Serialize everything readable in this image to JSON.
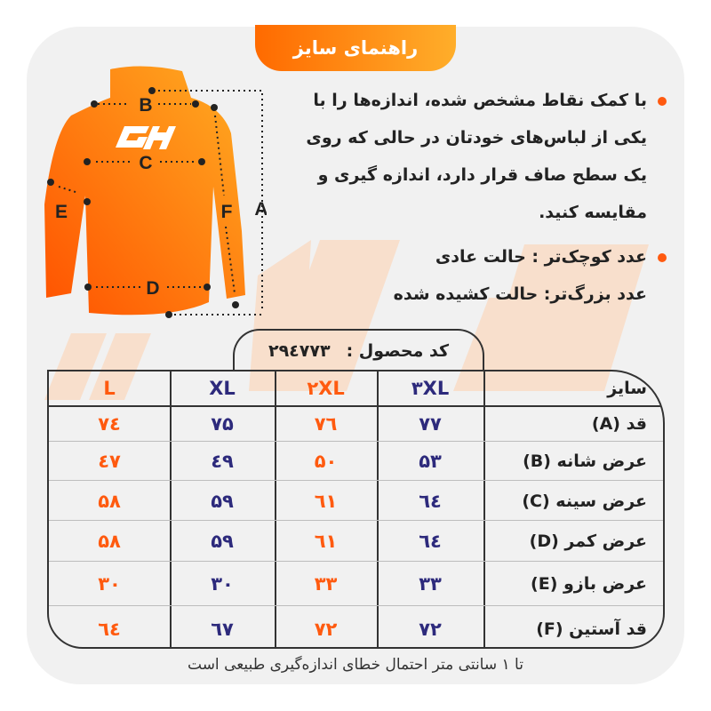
{
  "title": "راهنمای سایز",
  "instructions": [
    "با کمک نقاط مشخص شده، اندازه‌ها را با یکی از لباس‌های خودتان در حالی که روی یک سطح صاف قرار دارد، اندازه گیری و مقایسه کنید.",
    "عدد کوچک‌تر : حالت عادی",
    "عدد بزرگ‌تر: حالت کشیده شده"
  ],
  "diagram_labels": {
    "a": "A",
    "b": "B",
    "c": "C",
    "d": "D",
    "e": "E",
    "f": "F"
  },
  "product_code": {
    "label": "کد محصول :",
    "value": "۲۹٤۷۷۳"
  },
  "colors": {
    "orange": "#ff5a0f",
    "navy": "#2d2a7c",
    "card": "#f1f1f1"
  },
  "table": {
    "header_label": "سایز",
    "sizes": [
      "۳XL",
      "۲XL",
      "XL",
      "L"
    ],
    "rows": [
      {
        "label": "قد (A)",
        "values": [
          "۷۷",
          "۷٦",
          "۷۵",
          "۷٤"
        ]
      },
      {
        "label": "عرض شانه (B)",
        "values": [
          "۵۳",
          "۵۰",
          "٤۹",
          "٤۷"
        ]
      },
      {
        "label": "عرض سینه (C)",
        "values": [
          "٦٤",
          "٦۱",
          "۵۹",
          "۵۸"
        ]
      },
      {
        "label": "عرض کمر (D)",
        "values": [
          "٦٤",
          "٦۱",
          "۵۹",
          "۵۸"
        ]
      },
      {
        "label": "عرض بازو (E)",
        "values": [
          "۳۳",
          "۳۳",
          "۳۰",
          "۳۰"
        ]
      },
      {
        "label": "قد آستین (F)",
        "values": [
          "۷۲",
          "۷۲",
          "٦۷",
          "٦٤"
        ]
      }
    ]
  },
  "note": "تا ۱ سانتی متر احتمال خطای اندازه‌گیری طبیعی است"
}
